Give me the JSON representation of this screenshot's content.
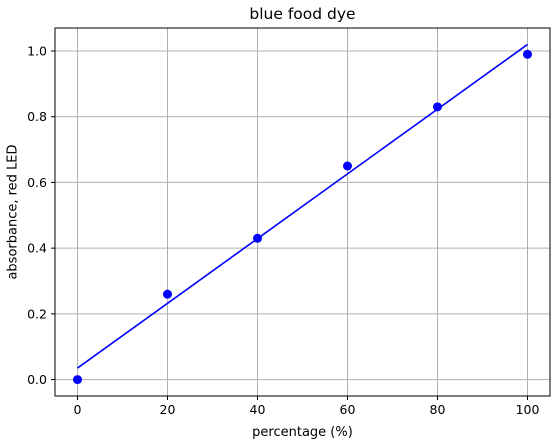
{
  "chart_data": {
    "type": "scatter",
    "title": "blue food dye",
    "xlabel": "percentage (%)",
    "ylabel": "absorbance, red LED",
    "xlim": [
      -5,
      105
    ],
    "ylim": [
      -0.05,
      1.07
    ],
    "xticks": [
      0,
      20,
      40,
      60,
      80,
      100
    ],
    "xtick_labels": [
      "0",
      "20",
      "40",
      "60",
      "80",
      "100"
    ],
    "yticks": [
      0.0,
      0.2,
      0.4,
      0.6,
      0.8,
      1.0
    ],
    "ytick_labels": [
      "0.0",
      "0.2",
      "0.4",
      "0.6",
      "0.8",
      "1.0"
    ],
    "grid": true,
    "series": [
      {
        "type": "scatter",
        "color": "#0000ff",
        "x": [
          0,
          20,
          40,
          60,
          80,
          100
        ],
        "y": [
          0.0,
          0.26,
          0.43,
          0.65,
          0.83,
          0.99
        ]
      },
      {
        "type": "line",
        "color": "#0000ff",
        "x": [
          0,
          100
        ],
        "y": [
          0.035,
          1.02
        ]
      }
    ]
  }
}
